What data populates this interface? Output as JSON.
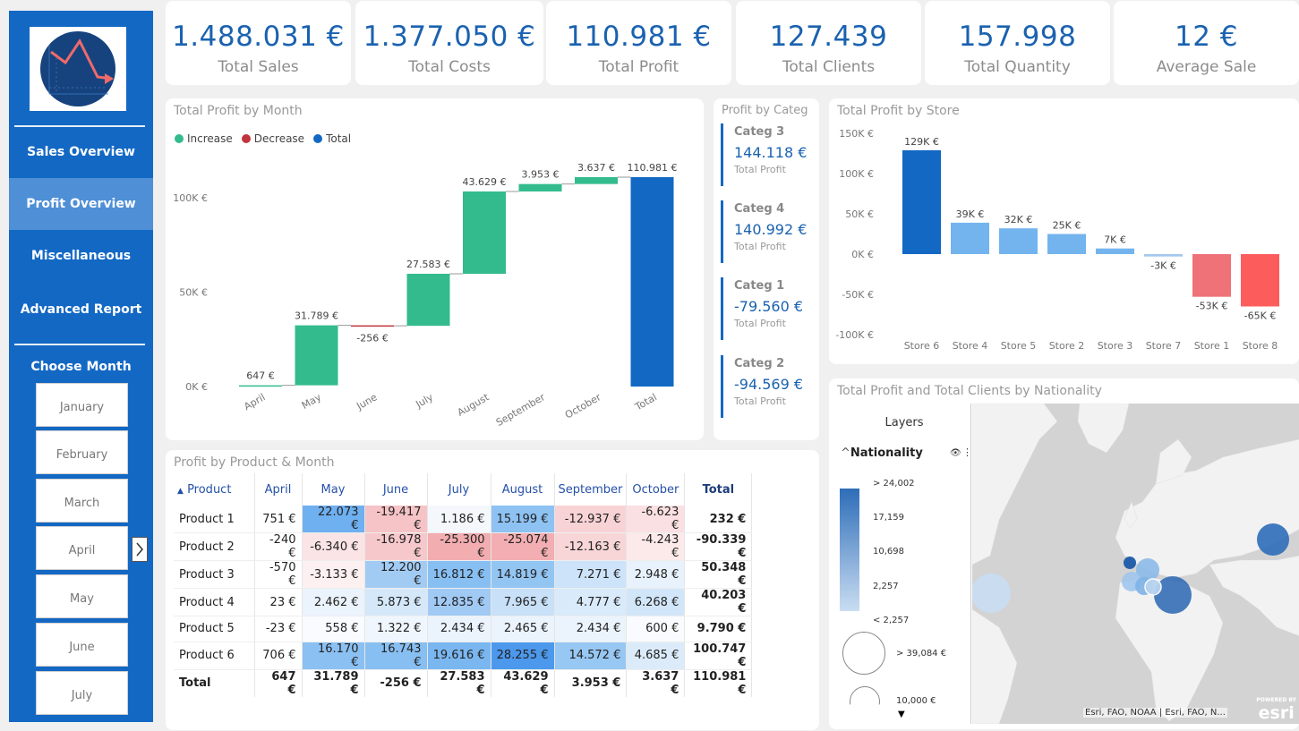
{
  "kpis": [
    {
      "value": "1.488.031 €",
      "label": "Total Sales"
    },
    {
      "value": "1.377.050 €",
      "label": "Total Costs"
    },
    {
      "value": "110.981 €",
      "label": "Total Profit"
    },
    {
      "value": "127.439",
      "label": "Total Clients"
    },
    {
      "value": "157.998",
      "label": "Total Quantity"
    },
    {
      "value": "12 €",
      "label": "Average Sale"
    }
  ],
  "sidebar": {
    "nav": [
      "Sales Overview",
      "Profit Overview",
      "Miscellaneous",
      "Advanced Report"
    ],
    "active": "Profit Overview",
    "choose_month_label": "Choose Month",
    "months": [
      "January",
      "February",
      "March",
      "April",
      "May",
      "June",
      "July"
    ]
  },
  "waterfall": {
    "title": "Total Profit by Month",
    "legend": [
      "Increase",
      "Decrease",
      "Total"
    ],
    "colors": {
      "increase": "#33bb8e",
      "decrease": "#c0353a",
      "total": "#1368c4"
    },
    "y_ticks": [
      "100K €",
      "50K €",
      "0K €"
    ],
    "chart_data": {
      "type": "waterfall",
      "categories": [
        "April",
        "May",
        "June",
        "July",
        "August",
        "September",
        "October",
        "Total"
      ],
      "values": [
        647,
        31789,
        -256,
        27583,
        43629,
        3953,
        3637,
        110981
      ],
      "labels": [
        "647 €",
        "31.789 €",
        "-256 €",
        "27.583 €",
        "43.629 €",
        "3.953 €",
        "3.637 €",
        "110.981 €"
      ],
      "ylim": [
        0,
        110981
      ]
    }
  },
  "categ_panel": {
    "title": "Profit by Categ",
    "items": [
      {
        "name": "Categ 3",
        "value": "144.118 €",
        "sub": "Total Profit"
      },
      {
        "name": "Categ 4",
        "value": "140.992 €",
        "sub": "Total Profit"
      },
      {
        "name": "Categ 1",
        "value": "-79.560 €",
        "sub": "Total Profit"
      },
      {
        "name": "Categ 2",
        "value": "-94.569 €",
        "sub": "Total Profit"
      }
    ]
  },
  "store_chart": {
    "title": "Total Profit by Store",
    "y_ticks": [
      "150K €",
      "100K €",
      "50K €",
      "0K €",
      "-50K €",
      "-100K €"
    ],
    "chart_data": {
      "type": "bar",
      "categories": [
        "Store 6",
        "Store 4",
        "Store 5",
        "Store 2",
        "Store 3",
        "Store 7",
        "Store 1",
        "Store 8"
      ],
      "values": [
        129,
        39,
        32,
        25,
        7,
        -3,
        -53,
        -65
      ],
      "labels": [
        "129K €",
        "39K €",
        "32K €",
        "25K €",
        "7K €",
        "-3K €",
        "-53K €",
        "-65K €"
      ],
      "ylim": [
        -100,
        150
      ],
      "colors": [
        "#1368c4",
        "#74b4ee",
        "#74b4ee",
        "#74b4ee",
        "#74b4ee",
        "#a6c8ee",
        "#ef7278",
        "#fd5c5c"
      ]
    }
  },
  "matrix": {
    "title": "Profit by Product & Month",
    "columns": [
      "Product",
      "April",
      "May",
      "June",
      "July",
      "August",
      "September",
      "October",
      "Total"
    ],
    "rows": [
      {
        "name": "Product 1",
        "cells": [
          "751 €",
          "22.073 €",
          "-19.417 €",
          "1.186 €",
          "15.199 €",
          "-12.937 €",
          "-6.623 €"
        ],
        "total": "232 €",
        "bg": [
          "#ffffff",
          "#6fb0f0",
          "#f6c3c6",
          "#f4f8fd",
          "#8ec2f3",
          "#f8d3d5",
          "#fae0e2"
        ]
      },
      {
        "name": "Product 2",
        "cells": [
          "-240 €",
          "-6.340 €",
          "-16.978 €",
          "-25.300 €",
          "-25.074 €",
          "-12.163 €",
          "-4.243 €"
        ],
        "total": "-90.339 €",
        "bg": [
          "#ffffff",
          "#fbe4e5",
          "#f6c8cb",
          "#f2adb1",
          "#f2aeb2",
          "#f8d6d8",
          "#fce9ea"
        ]
      },
      {
        "name": "Product 3",
        "cells": [
          "-570 €",
          "-3.133 €",
          "12.200 €",
          "16.812 €",
          "14.819 €",
          "7.271 €",
          "2.948 €"
        ],
        "total": "50.348 €",
        "bg": [
          "#ffffff",
          "#fdf0f0",
          "#a2cbf4",
          "#87bff2",
          "#93c5f3",
          "#cde3f9",
          "#e8f2fc"
        ]
      },
      {
        "name": "Product 4",
        "cells": [
          "23 €",
          "2.462 €",
          "5.873 €",
          "12.835 €",
          "7.965 €",
          "4.777 €",
          "6.268 €"
        ],
        "total": "40.203 €",
        "bg": [
          "#ffffff",
          "#ebf3fc",
          "#d5e8fa",
          "#a0caf4",
          "#c8e0f8",
          "#d9eafa",
          "#d2e6f9"
        ]
      },
      {
        "name": "Product 5",
        "cells": [
          "-23 €",
          "558 €",
          "1.322 €",
          "2.434 €",
          "2.465 €",
          "2.434 €",
          "600 €"
        ],
        "total": "9.790 €",
        "bg": [
          "#ffffff",
          "#f9fbfe",
          "#f0f6fd",
          "#ebf3fc",
          "#ebf3fc",
          "#ebf3fc",
          "#f9fbfe"
        ]
      },
      {
        "name": "Product 6",
        "cells": [
          "706 €",
          "16.170 €",
          "16.743 €",
          "19.616 €",
          "28.255 €",
          "14.572 €",
          "4.685 €"
        ],
        "total": "100.747 €",
        "bg": [
          "#ffffff",
          "#8bc0f2",
          "#88bff2",
          "#7ab7f1",
          "#4c98ec",
          "#97c7f3",
          "#dbebfa"
        ]
      }
    ],
    "total_row": {
      "name": "Total",
      "cells": [
        "647 €",
        "31.789 €",
        "-256 €",
        "27.583 €",
        "43.629 €",
        "3.953 €",
        "3.637 €"
      ],
      "total": "110.981 €"
    }
  },
  "map": {
    "title": "Total Profit and Total Clients by Nationality",
    "layers_label": "Layers",
    "layer_name": "Nationality",
    "gradient_labels": [
      "> 24,002",
      "17,159",
      "10,698",
      "2,257",
      "< 2,257"
    ],
    "size_labels": [
      "> 39,084 €",
      "10,000 €"
    ],
    "attribution": "Esri, FAO, NOAA | Esri, FAO, N...",
    "logo_small": "POWERED BY",
    "logo_big": "esri"
  }
}
